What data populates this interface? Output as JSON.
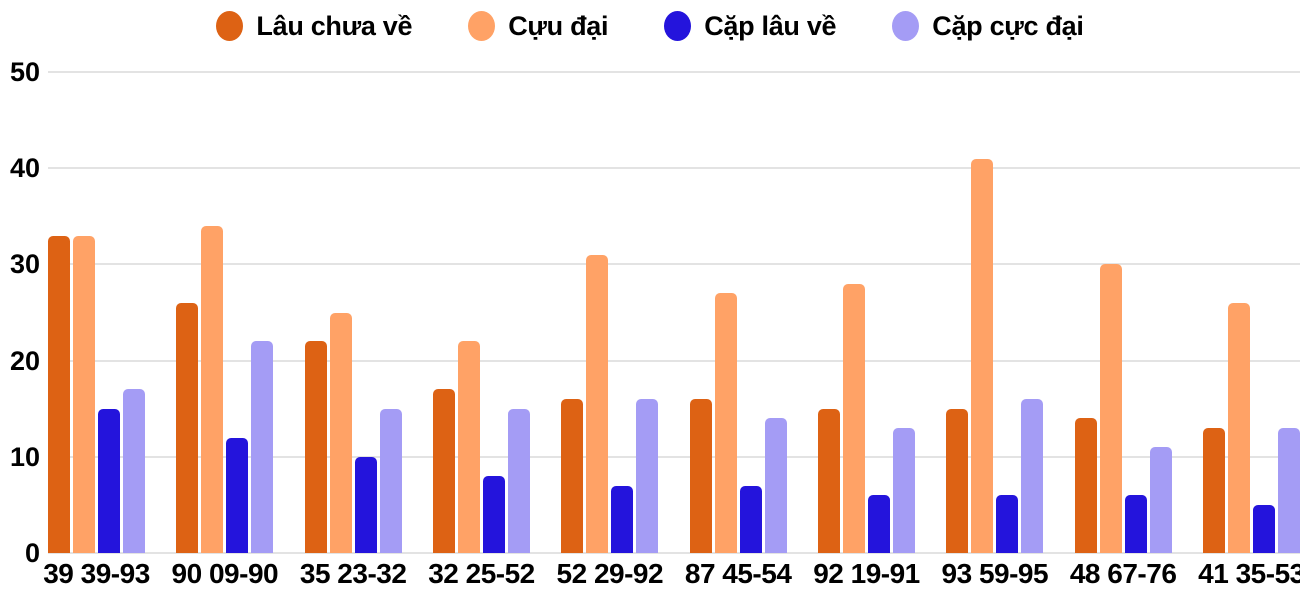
{
  "colors": {
    "background": "#ffffff",
    "gridline": "#e3e3e3",
    "text": "#000000"
  },
  "y_axis": {
    "ticks": [
      0,
      10,
      20,
      30,
      40,
      50
    ]
  },
  "chart_data": {
    "type": "bar",
    "title": "",
    "xlabel": "",
    "ylabel": "",
    "ylim": [
      0,
      50
    ],
    "grid": true,
    "legend_position": "top",
    "categories": [
      "39 39-93",
      "90 09-90",
      "35 23-32",
      "32 25-52",
      "52 29-92",
      "87 45-54",
      "92 19-91",
      "93 59-95",
      "48 67-76",
      "41 35-53"
    ],
    "series": [
      {
        "name": "Lâu chưa về",
        "color": "#DD6214",
        "values": [
          33,
          26,
          22,
          17,
          16,
          16,
          15,
          15,
          14,
          13
        ]
      },
      {
        "name": "Cựu đại",
        "color": "#FFA266",
        "values": [
          33,
          34,
          25,
          22,
          31,
          27,
          28,
          41,
          30,
          26
        ]
      },
      {
        "name": "Cặp lâu về",
        "color": "#2414DC",
        "values": [
          15,
          12,
          10,
          8,
          7,
          7,
          6,
          6,
          6,
          5
        ]
      },
      {
        "name": "Cặp cực đại",
        "color": "#A49CF5",
        "values": [
          17,
          22,
          15,
          15,
          16,
          14,
          13,
          16,
          11,
          13
        ]
      }
    ]
  }
}
